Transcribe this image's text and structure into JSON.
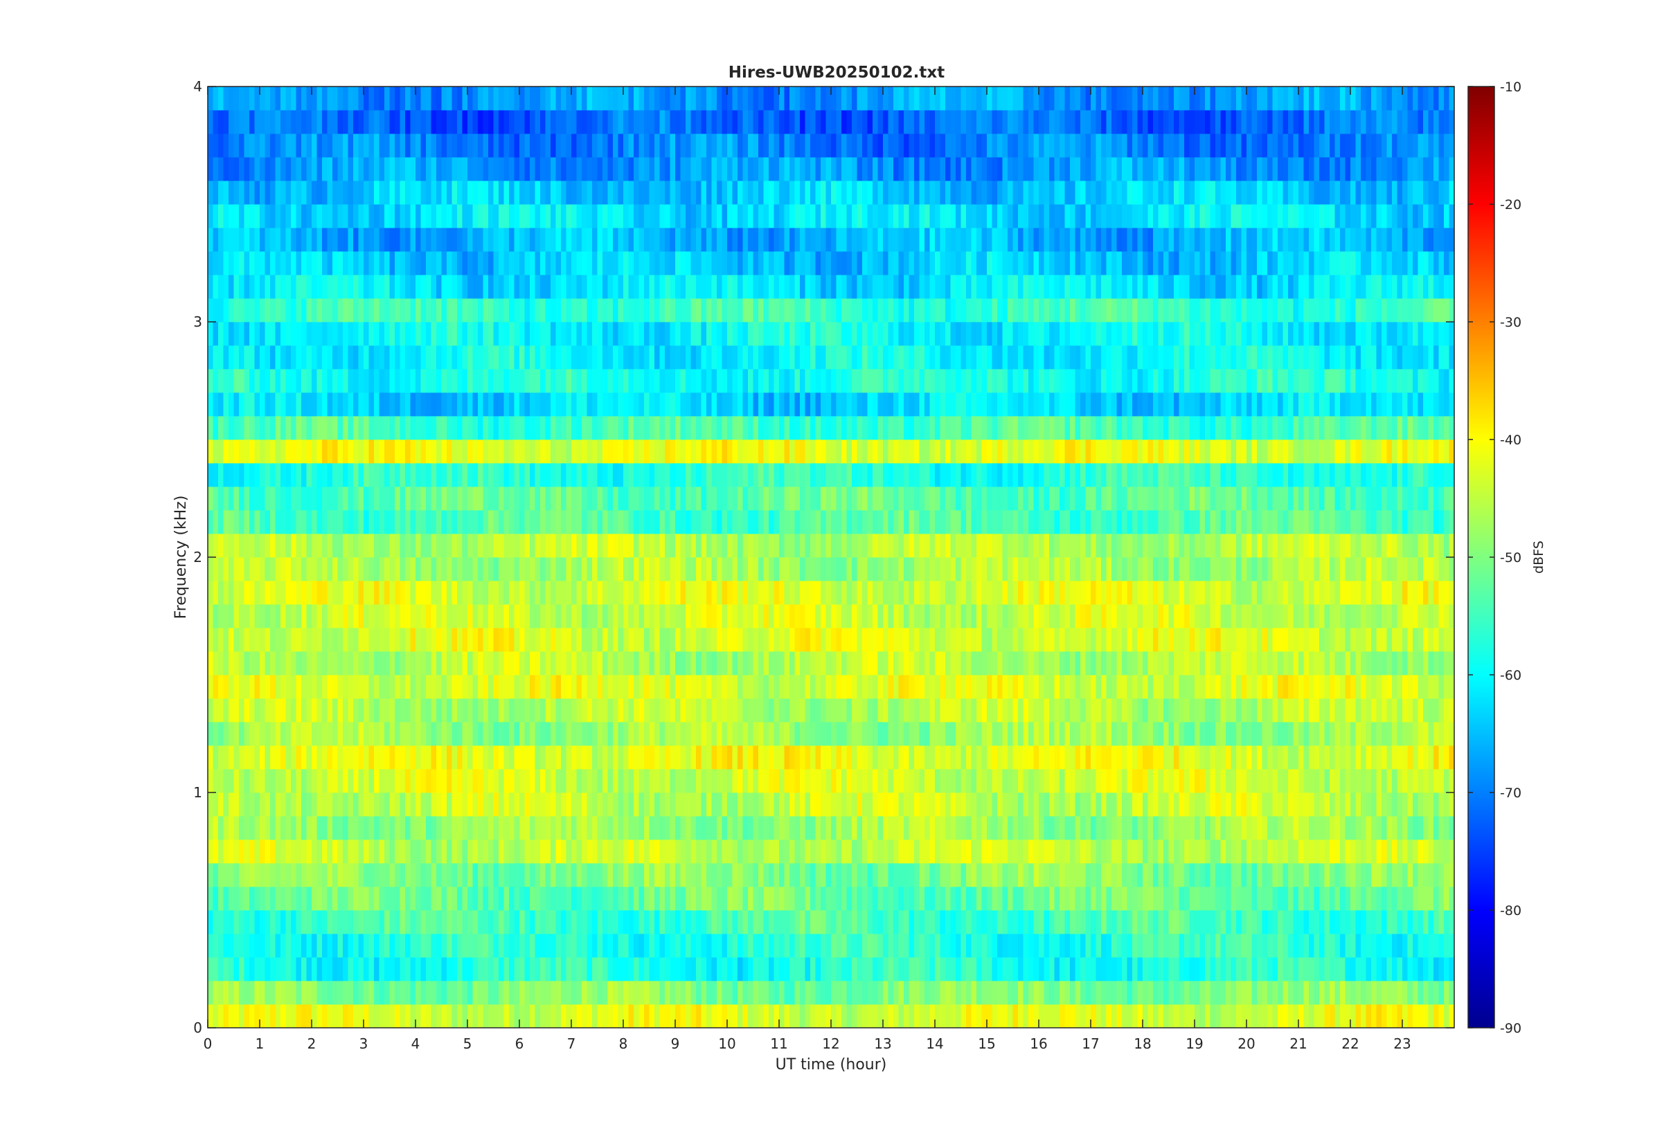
{
  "chart_data": {
    "type": "heatmap",
    "title": "Hires-UWB20250102.txt",
    "xlabel": "UT time (hour)",
    "ylabel": "Frequency (kHz)",
    "xlim": [
      0,
      24
    ],
    "ylim": [
      0,
      4
    ],
    "x_ticks": [
      0,
      1,
      2,
      3,
      4,
      5,
      6,
      7,
      8,
      9,
      10,
      11,
      12,
      13,
      14,
      15,
      16,
      17,
      18,
      19,
      20,
      21,
      22,
      23
    ],
    "y_ticks": [
      0,
      1,
      2,
      3,
      4
    ],
    "colorbar": {
      "label": "dBFS",
      "clim": [
        -90,
        -10
      ],
      "ticks": [
        -90,
        -80,
        -70,
        -60,
        -50,
        -40,
        -30,
        -20,
        -10
      ],
      "colormap": "jet",
      "location": "right"
    },
    "grid": false,
    "time_step_hours": 0.1,
    "freq_bands_khz": [
      0.0,
      0.1,
      0.2,
      0.3,
      0.4,
      0.5,
      0.6,
      0.7,
      0.8,
      0.9,
      1.0,
      1.1,
      1.2,
      1.3,
      1.4,
      1.5,
      1.6,
      1.7,
      1.8,
      1.9,
      2.0,
      2.1,
      2.2,
      2.3,
      2.4,
      2.5,
      2.6,
      2.7,
      2.8,
      2.9,
      3.0,
      3.1,
      3.2,
      3.3,
      3.4,
      3.5,
      3.6,
      3.7,
      3.8,
      3.9
    ],
    "band_level_dbfs_approx": [
      -43,
      -50,
      -58,
      -57,
      -55,
      -52,
      -50,
      -45,
      -48,
      -45,
      -44,
      -42,
      -48,
      -46,
      -43,
      -46,
      -43,
      -44,
      -43,
      -47,
      -46,
      -54,
      -53,
      -57,
      -42,
      -55,
      -63,
      -58,
      -60,
      -60,
      -56,
      -62,
      -64,
      -66,
      -62,
      -64,
      -68,
      -70,
      -72,
      -68
    ]
  }
}
